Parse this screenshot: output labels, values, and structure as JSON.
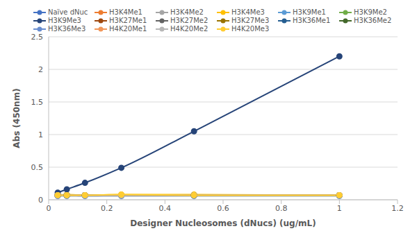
{
  "chart_data": {
    "type": "line",
    "x_label": "Designer Nucleosomes (dNucs) (ug/mL)",
    "y_label": "Abs (450nm)",
    "x": [
      0.03125,
      0.0625,
      0.125,
      0.25,
      0.5,
      1
    ],
    "xlim": [
      0,
      1.2
    ],
    "xticks": [
      0,
      0.2,
      0.4,
      0.6,
      0.8,
      1,
      1.2
    ],
    "ylim": [
      0,
      2.5
    ],
    "yticks": [
      0,
      0.5,
      1,
      1.5,
      2,
      2.5
    ],
    "grid": true,
    "legend": "top",
    "marker": "circle",
    "line_style": "solid",
    "series": [
      {
        "name": "Naïve dNuc",
        "color": "#4472C4",
        "values": [
          0.07,
          0.07,
          0.07,
          0.07,
          0.07,
          0.07
        ]
      },
      {
        "name": "H3K4Me1",
        "color": "#ED7D31",
        "values": [
          0.07,
          0.07,
          0.07,
          0.07,
          0.07,
          0.07
        ]
      },
      {
        "name": "H3K4Me2",
        "color": "#A5A5A5",
        "values": [
          0.07,
          0.07,
          0.07,
          0.07,
          0.07,
          0.07
        ]
      },
      {
        "name": "H3K4Me3",
        "color": "#FFC000",
        "values": [
          0.07,
          0.08,
          0.07,
          0.08,
          0.08,
          0.07
        ]
      },
      {
        "name": "H3K9Me1",
        "color": "#5B9BD5",
        "values": [
          0.07,
          0.07,
          0.07,
          0.07,
          0.07,
          0.07
        ]
      },
      {
        "name": "H3K9Me2",
        "color": "#70AD47",
        "values": [
          0.07,
          0.07,
          0.07,
          0.07,
          0.07,
          0.07
        ]
      },
      {
        "name": "H3K9Me3",
        "color": "#264478",
        "values": [
          0.11,
          0.16,
          0.26,
          0.49,
          1.05,
          2.2
        ]
      },
      {
        "name": "H3K27Me1",
        "color": "#9E480E",
        "values": [
          0.07,
          0.07,
          0.07,
          0.07,
          0.07,
          0.07
        ]
      },
      {
        "name": "H3K27Me2",
        "color": "#636363",
        "values": [
          0.07,
          0.07,
          0.07,
          0.07,
          0.07,
          0.07
        ]
      },
      {
        "name": "H3K27Me3",
        "color": "#997300",
        "values": [
          0.07,
          0.07,
          0.07,
          0.07,
          0.07,
          0.07
        ]
      },
      {
        "name": "H3K36Me1",
        "color": "#255E91",
        "values": [
          0.06,
          0.06,
          0.06,
          0.06,
          0.06,
          0.06
        ]
      },
      {
        "name": "H3K36Me2",
        "color": "#43682B",
        "values": [
          0.07,
          0.07,
          0.07,
          0.07,
          0.07,
          0.07
        ]
      },
      {
        "name": "H3K36Me3",
        "color": "#698ED0",
        "values": [
          0.06,
          0.07,
          0.06,
          0.07,
          0.07,
          0.07
        ]
      },
      {
        "name": "H4K20Me1",
        "color": "#F1975A",
        "values": [
          0.07,
          0.07,
          0.07,
          0.07,
          0.07,
          0.07
        ]
      },
      {
        "name": "H4K20Me2",
        "color": "#B7B7B7",
        "values": [
          0.07,
          0.07,
          0.07,
          0.07,
          0.07,
          0.07
        ]
      },
      {
        "name": "H4K20Me3",
        "color": "#FFCD33",
        "values": [
          0.07,
          0.07,
          0.07,
          0.08,
          0.07,
          0.07
        ]
      }
    ]
  }
}
